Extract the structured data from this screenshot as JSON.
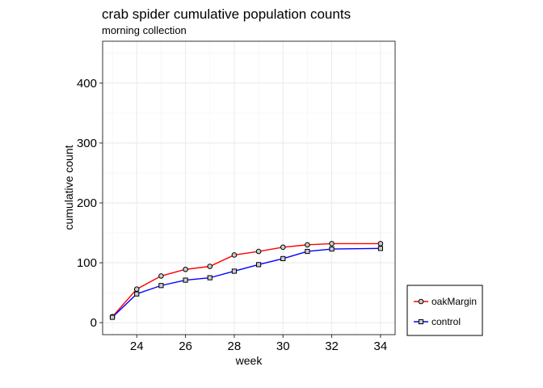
{
  "chart_data": {
    "type": "line",
    "title": "crab spider cumulative population counts",
    "subtitle": "morning collection",
    "xlabel": "week",
    "ylabel": "cumulative count",
    "xlim": [
      22.6,
      34.6
    ],
    "ylim": [
      -20,
      470
    ],
    "xticks": [
      24,
      26,
      28,
      30,
      32,
      34
    ],
    "yticks": [
      0,
      100,
      200,
      300,
      400
    ],
    "grid": true,
    "legend_position": "bottom-right",
    "x": [
      23,
      24,
      25,
      26,
      27,
      28,
      29,
      30,
      31,
      32,
      34
    ],
    "series": [
      {
        "name": "oakMargin",
        "color": "#ff0000",
        "marker": "circle",
        "values": [
          10,
          56,
          78,
          89,
          94,
          113,
          119,
          126,
          130,
          132,
          132
        ]
      },
      {
        "name": "control",
        "color": "#0000ff",
        "marker": "square",
        "values": [
          9,
          48,
          62,
          71,
          75,
          86,
          97,
          107,
          119,
          123,
          124
        ]
      }
    ]
  }
}
